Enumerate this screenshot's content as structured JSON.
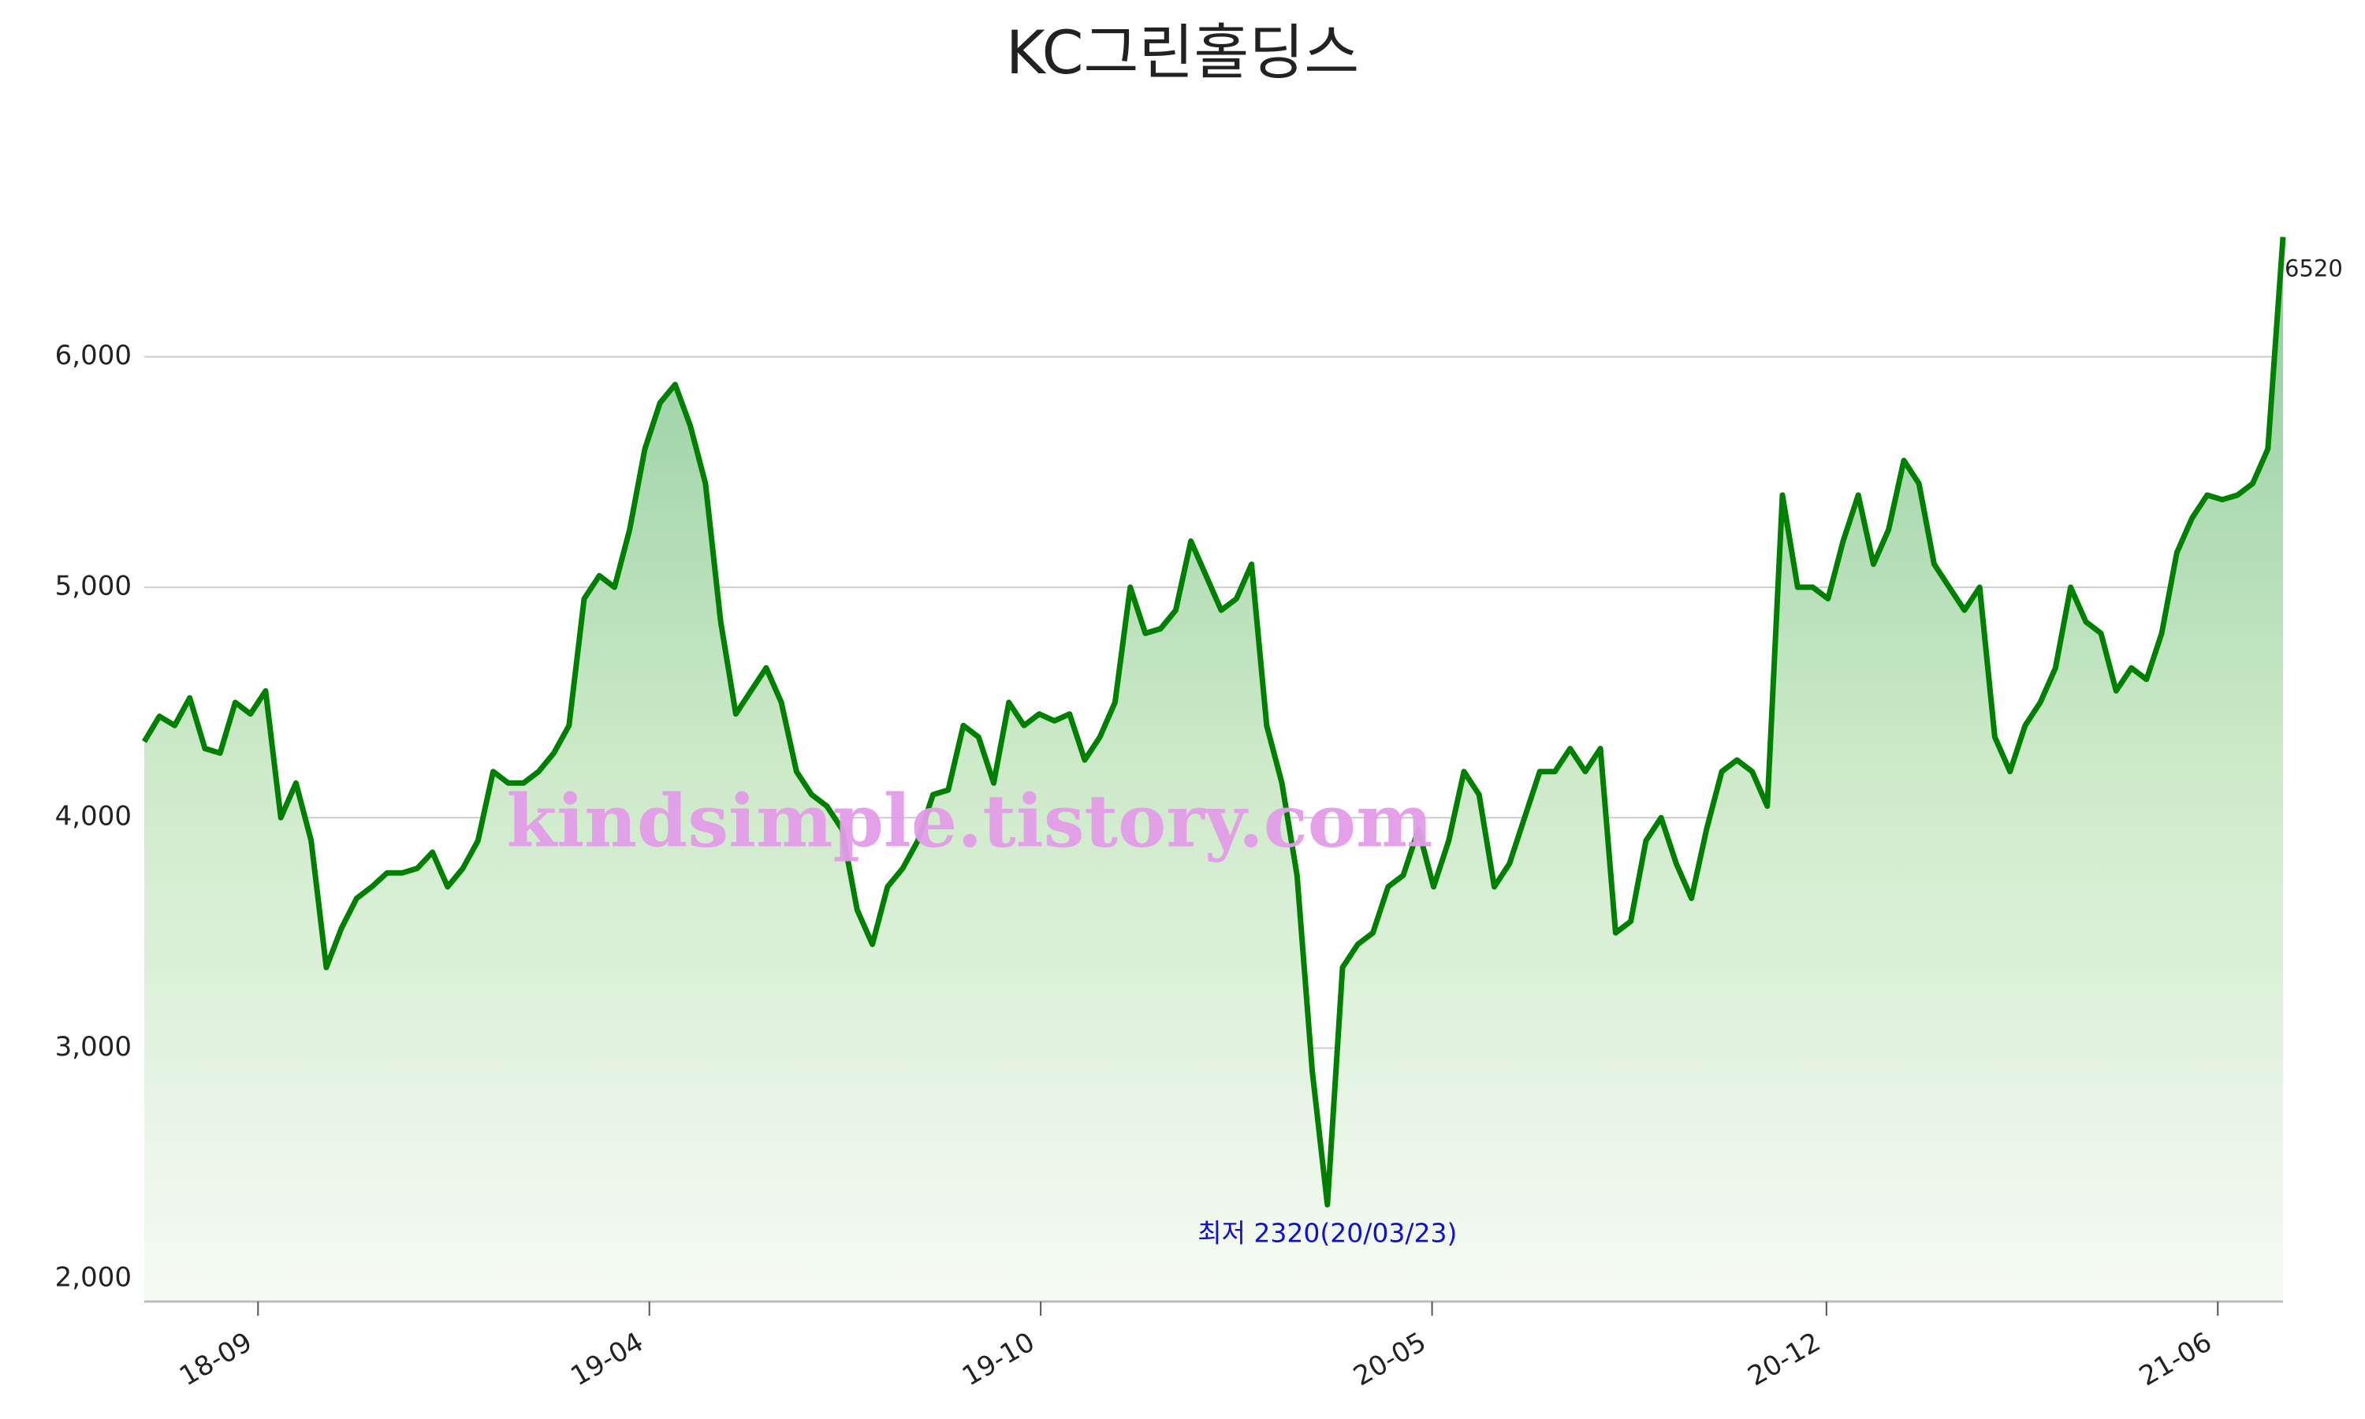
{
  "chart_data": {
    "type": "area-line",
    "title": "KC그린홀딩스",
    "values": [
      4330,
      4440,
      4400,
      4520,
      4300,
      4280,
      4500,
      4450,
      4550,
      4000,
      4150,
      3900,
      3350,
      3520,
      3650,
      3700,
      3760,
      3760,
      3780,
      3850,
      3700,
      3780,
      3900,
      4200,
      4150,
      4150,
      4200,
      4280,
      4400,
      4950,
      5050,
      5000,
      5250,
      5600,
      5800,
      5880,
      5700,
      5450,
      4850,
      4450,
      4550,
      4650,
      4500,
      4200,
      4100,
      4050,
      3950,
      3600,
      3450,
      3700,
      3780,
      3900,
      4100,
      4120,
      4400,
      4350,
      4150,
      4500,
      4400,
      4450,
      4420,
      4450,
      4250,
      4350,
      4500,
      5000,
      4800,
      4820,
      4900,
      5200,
      5050,
      4900,
      4950,
      5100,
      4400,
      4150,
      3750,
      2900,
      2320,
      3350,
      3450,
      3500,
      3700,
      3750,
      3950,
      3700,
      3900,
      4200,
      4100,
      3700,
      3800,
      4000,
      4200,
      4200,
      4300,
      4200,
      4300,
      3500,
      3550,
      3900,
      4000,
      3800,
      3650,
      3950,
      4200,
      4250,
      4200,
      4050,
      5400,
      5000,
      5000,
      4950,
      5200,
      5400,
      5100,
      5250,
      5550,
      5450,
      5100,
      5000,
      4900,
      5000,
      4350,
      4200,
      4400,
      4500,
      4650,
      5000,
      4850,
      4800,
      4550,
      4650,
      4600,
      4800,
      5150,
      5300,
      5400,
      5380,
      5400,
      5450,
      5600,
      6520
    ],
    "color": "#008000",
    "xlim": [
      0,
      141
    ],
    "xticks": [
      {
        "value": 7.5,
        "label": "18-09"
      },
      {
        "value": 33.3,
        "label": "19-04"
      },
      {
        "value": 59.1,
        "label": "19-10"
      },
      {
        "value": 84.9,
        "label": "20-05"
      },
      {
        "value": 110.9,
        "label": "20-12"
      },
      {
        "value": 136.7,
        "label": "21-06"
      }
    ],
    "ylim": [
      1900,
      6700
    ],
    "yticks": [
      {
        "value": 2000,
        "label": "2,000"
      },
      {
        "value": 3000,
        "label": "3,000"
      },
      {
        "value": 4000,
        "label": "4,000"
      },
      {
        "value": 5000,
        "label": "5,000"
      },
      {
        "value": 6000,
        "label": "6,000"
      }
    ],
    "grid": true,
    "annotations": [
      {
        "text": "최저 2320(20/03/23)",
        "color": "#1010d0"
      }
    ],
    "watermark": "kindsimple.tistory.com"
  }
}
